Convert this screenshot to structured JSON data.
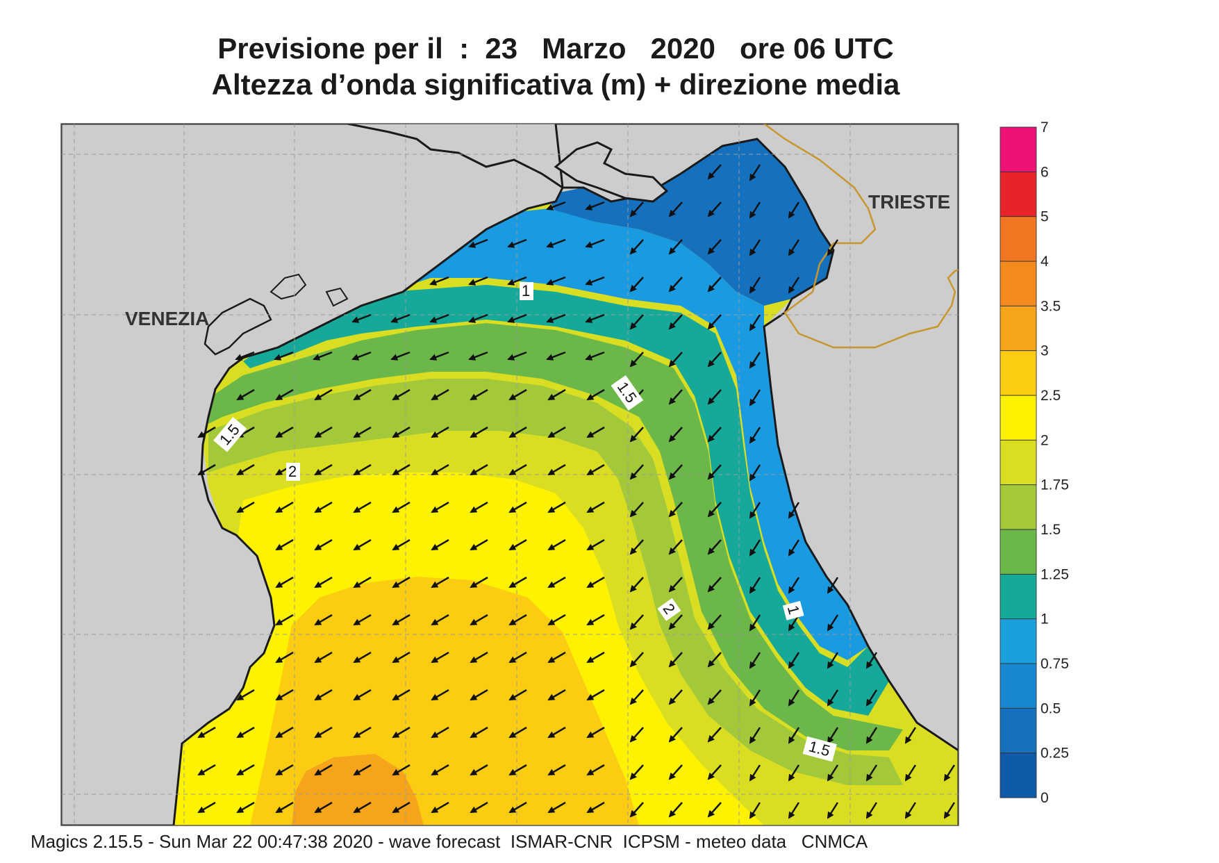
{
  "title": {
    "line1": "Previsione per il  :  23   Marzo   2020   ore 06 UTC",
    "line2": "Altezza d’onda significativa (m) + direzione media"
  },
  "places": {
    "venezia": "VENEZIA",
    "trieste": "TRIESTE"
  },
  "contour_labels": {
    "c1_north": "1",
    "c15_center": "1.5",
    "c15_west": "1.5",
    "c2_west": "2",
    "c2_center": "2",
    "c1_east": "1",
    "c15_southeast": "1.5"
  },
  "colorbar": {
    "ticks": [
      "7",
      "6",
      "5",
      "4",
      "3.5",
      "3",
      "2.5",
      "2",
      "1.75",
      "1.5",
      "1.25",
      "1",
      "0.75",
      "0.5",
      "0.25",
      "0"
    ],
    "colors": [
      "#ee1277",
      "#e8232a",
      "#f07622",
      "#f28a1e",
      "#f6a51a",
      "#fbcc12",
      "#fff200",
      "#d9de22",
      "#a3c93a",
      "#6cb74a",
      "#16a999",
      "#1aa0dd",
      "#1888d2",
      "#1571bd",
      "#0f5aa7"
    ]
  },
  "colors": {
    "land": "#cdcdcd",
    "coast": "#1a1a1a",
    "border": "#c8962e",
    "arrow": "#111111"
  },
  "footer": "Magics 2.15.5 - Sun Mar 22 00:47:38 2020 - wave forecast  ISMAR-CNR  ICPSM - meteo data   CNMCA"
}
